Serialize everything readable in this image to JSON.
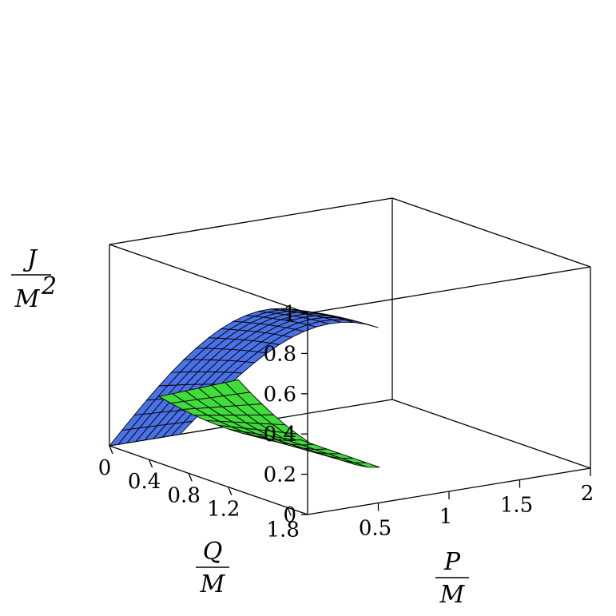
{
  "chart_data": {
    "type": "surface3d",
    "title": "",
    "colors": {
      "branch_q": "#4a72e8",
      "branch_p": "#3fdc3a",
      "mesh": "#000000",
      "background": "#ffffff"
    },
    "axes": {
      "z": {
        "label_num": "J",
        "label_den": "M",
        "label_exp": "2",
        "range": [
          0,
          1
        ],
        "ticks": [
          "0",
          "0.2",
          "0.4",
          "0.6",
          "0.8",
          "1"
        ]
      },
      "q": {
        "label_num": "Q",
        "label_den": "M",
        "range": [
          0,
          2
        ],
        "ticks": [
          "0",
          "0.4",
          "0.8",
          "1.2",
          "1.8"
        ]
      },
      "p": {
        "label_num": "P",
        "label_den": "M",
        "range": [
          0,
          2
        ],
        "ticks": [
          "0.5",
          "1",
          "1.5",
          "2"
        ]
      }
    },
    "surfaces": [
      {
        "name": "",
        "color": "#4a72e8",
        "description_points": [
          [
            0,
            0,
            1
          ],
          [
            2,
            0,
            0
          ]
        ]
      },
      {
        "name": "",
        "color": "#3fdc3a",
        "description_points": [
          [
            0,
            0,
            0.5
          ],
          [
            0,
            1,
            0
          ]
        ]
      }
    ]
  }
}
